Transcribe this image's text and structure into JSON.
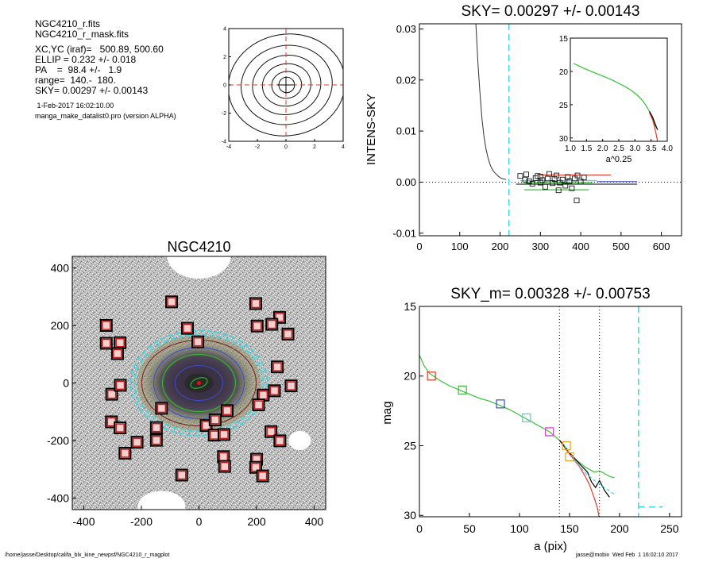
{
  "info": {
    "lines1": [
      "NGC4210_r.fits",
      "NGC4210_r_mask.fits"
    ],
    "lines2": [
      "XC,YC (iraf)=   500.89, 500.60",
      "ELLIP = 0.232 +/- 0.018",
      "PA    =  98.4 +/-   1.9",
      "range=  140.-  180.",
      "SKY= 0.00297 +/- 0.00143"
    ],
    "date": " 1-Feb-2017 16:02:10.00",
    "program": "manga_make_datalist0.pro (version ALPHA)"
  },
  "footer": {
    "path": "/home/jasse/Desktop/califa_blx_kine_newpsf/NGC4210_r_magplot",
    "stamp": "jasse@mobix  Wed Feb  1 16:02:10 2017"
  },
  "colors": {
    "cyan": "#3ed6e0",
    "red": "#e03a2a",
    "green": "#33c233",
    "blue": "#3b4bd0",
    "orange": "#e8a030",
    "magenta": "#c83ac8",
    "darkred": "#7a1a2a"
  },
  "chart_data": [
    {
      "id": "contour",
      "type": "contour",
      "xlim": [
        -4,
        4
      ],
      "ylim": [
        -4,
        4
      ],
      "xticks": [
        "-4",
        "-2",
        "0",
        "2",
        "4"
      ],
      "yticks": [
        "-4",
        "-2",
        "0",
        "2",
        "4"
      ],
      "contours": [
        {
          "a": 0.55,
          "b": 0.55,
          "pa": 0
        },
        {
          "a": 1.05,
          "b": 0.95,
          "pa": 10
        },
        {
          "a": 1.7,
          "b": 1.5,
          "pa": 10
        },
        {
          "a": 2.4,
          "b": 2.1,
          "pa": 10
        },
        {
          "a": 3.2,
          "b": 2.8,
          "pa": 10
        },
        {
          "a": 4.1,
          "b": 3.6,
          "pa": 10
        }
      ]
    },
    {
      "id": "sky-profile",
      "type": "line",
      "title": "SKY= 0.00297 +/- 0.00143",
      "xlabel": "",
      "ylabel": "INTENS-SKY",
      "xlim": [
        0,
        650
      ],
      "ylim": [
        -0.0105,
        0.031
      ],
      "xticks": [
        "0",
        "100",
        "200",
        "300",
        "400",
        "500",
        "600"
      ],
      "yticks": [
        "-0.01",
        "0.00",
        "0.01",
        "0.02",
        "0.03"
      ],
      "curve_x": [
        140,
        145,
        150,
        155,
        160,
        165,
        170,
        175,
        180,
        185,
        190,
        195,
        200,
        205,
        210,
        215
      ],
      "curve_y": [
        0.031,
        0.0235,
        0.0175,
        0.0125,
        0.009,
        0.0065,
        0.0048,
        0.0035,
        0.0026,
        0.002,
        0.0016,
        0.0012,
        0.0009,
        0.0007,
        0.0006,
        0.0005
      ],
      "vline_x": 222,
      "squares_x": [
        250,
        265,
        272,
        280,
        288,
        293,
        300,
        305,
        312,
        318,
        322,
        330,
        335,
        340,
        348,
        355,
        362,
        368,
        372,
        378,
        385,
        392,
        400,
        408,
        262,
        300,
        345,
        390
      ],
      "squares_y": [
        0.0012,
        0.0015,
        0.0002,
        -0.0003,
        0.0008,
        0.0012,
        -0.0001,
        0.0004,
        -0.0009,
        0.0007,
        0.0016,
        -0.0002,
        0.0006,
        0.0013,
        -0.0001,
        0.0005,
        -0.0007,
        0.001,
        0.0002,
        -0.0012,
        0.0007,
        0.0013,
        0.0001,
        0.0009,
        0.0005,
        0.0011,
        -0.0016,
        -0.0036
      ],
      "hlines": [
        {
          "x": [
            300,
            475
          ],
          "y": 0.0014,
          "color": "red"
        },
        {
          "x": [
            250,
            440
          ],
          "y": 0.0003,
          "color": "cyan"
        },
        {
          "x": [
            260,
            430
          ],
          "y": -0.0001,
          "color": "green"
        },
        {
          "x": [
            260,
            420
          ],
          "y": -0.0015,
          "color": "green"
        },
        {
          "x": [
            440,
            540
          ],
          "y": 0.0001,
          "color": "blue"
        }
      ]
    },
    {
      "id": "sky-inset",
      "type": "line",
      "xlabel": "a^0.25",
      "xlim": [
        1.0,
        4.0
      ],
      "ylim": [
        15,
        30.5
      ],
      "xticks": [
        "1.0",
        "1.5",
        "2.0",
        "2.5",
        "3.0",
        "3.5",
        "4.0"
      ],
      "yticks": [
        "15",
        "20",
        "25",
        "30"
      ],
      "x": [
        1.1,
        1.4,
        1.7,
        2.0,
        2.3,
        2.5,
        2.7,
        2.9,
        3.1,
        3.2,
        3.3,
        3.4,
        3.5,
        3.55,
        3.6,
        3.65
      ],
      "y": [
        18.8,
        19.5,
        20.1,
        20.7,
        21.3,
        21.8,
        22.3,
        22.9,
        23.7,
        24.2,
        24.8,
        25.6,
        26.5,
        27.2,
        27.8,
        28.4
      ]
    },
    {
      "id": "image",
      "type": "image",
      "title": "NGC4210",
      "xlim": [
        -440,
        440
      ],
      "ylim": [
        -440,
        440
      ],
      "xticks": [
        "-400",
        "-200",
        "0",
        "200",
        "400"
      ],
      "yticks": [
        "-400",
        "-200",
        "0",
        "200",
        "400"
      ],
      "mask_x": [
        -95,
        -322,
        -274,
        -322,
        -283,
        -40,
        -4,
        -304,
        -274,
        -148,
        -215,
        -257,
        -148,
        -130,
        -303,
        -273,
        25,
        98,
        85,
        53,
        -60,
        87,
        56,
        89
      ],
      "mask_y": [
        282,
        138,
        140,
        200,
        102,
        190,
        143,
        -135,
        -156,
        -199,
        -206,
        -244,
        -155,
        -88,
        -39,
        -8,
        -148,
        -96,
        -256,
        -181,
        -320,
        -179,
        -128,
        -290
      ],
      "mask_xs": [
        280,
        253,
        202,
        197,
        309,
        320,
        272,
        262,
        223,
        207,
        250,
        281,
        200,
        197,
        221
      ],
      "mask_ys": [
        228,
        204,
        198,
        276,
        170,
        -10,
        56,
        -27,
        -42,
        -76,
        -169,
        -201,
        -265,
        -293,
        -323
      ]
    },
    {
      "id": "mag-profile",
      "type": "line",
      "title": "SKY_m=  0.00328 +/- 0.00753",
      "xlabel": "a (pix)",
      "ylabel": "mag",
      "xlim": [
        0,
        262
      ],
      "ylim": [
        15,
        30.1
      ],
      "xticks": [
        "0",
        "50",
        "100",
        "150",
        "200",
        "250"
      ],
      "yticks": [
        "15",
        "20",
        "25",
        "30"
      ],
      "x": [
        0,
        5,
        10,
        20,
        30,
        40,
        50,
        60,
        70,
        80,
        90,
        100,
        110,
        120,
        130,
        140,
        145,
        150,
        155,
        160,
        165,
        170,
        175,
        180,
        185,
        190,
        195
      ],
      "y": [
        18.5,
        19.3,
        19.8,
        20.3,
        20.7,
        21.0,
        21.3,
        21.6,
        21.8,
        22.1,
        22.4,
        22.8,
        23.2,
        23.6,
        24.0,
        24.6,
        25.0,
        25.5,
        25.9,
        26.2,
        26.5,
        26.7,
        26.9,
        26.8,
        27.0,
        27.2,
        27.3
      ],
      "vlines": [
        140,
        180
      ],
      "sky_x": 219,
      "sky_level": 29.4,
      "markers": [
        {
          "x": 12,
          "y": 20.0,
          "color": "red"
        },
        {
          "x": 43,
          "y": 21.0,
          "color": "green"
        },
        {
          "x": 81,
          "y": 22.0,
          "color": "blue"
        },
        {
          "x": 107,
          "y": 23.0,
          "color": "cyan"
        },
        {
          "x": 130,
          "y": 24.0,
          "color": "magenta"
        },
        {
          "x": 147,
          "y": 25.0,
          "color": "orange"
        },
        {
          "x": 150,
          "y": 25.8,
          "color": "orange"
        }
      ]
    }
  ]
}
